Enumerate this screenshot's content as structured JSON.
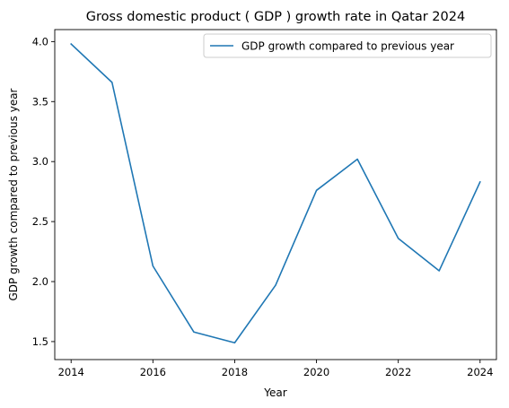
{
  "chart_data": {
    "type": "line",
    "title": "Gross domestic product ( GDP ) growth rate in Qatar 2024",
    "xlabel": "Year",
    "ylabel": "GDP growth compared to previous year",
    "xlim": [
      2013.6,
      2024.4
    ],
    "ylim": [
      1.35,
      4.1
    ],
    "xticks": [
      2014,
      2016,
      2018,
      2020,
      2022,
      2024
    ],
    "yticks": [
      1.5,
      2.0,
      2.5,
      3.0,
      3.5,
      4.0
    ],
    "ytick_labels": [
      "1.5",
      "2.0",
      "2.5",
      "3.0",
      "3.5",
      "4.0"
    ],
    "grid": false,
    "legend_position": "top-right",
    "x": [
      2014,
      2015,
      2016,
      2017,
      2018,
      2019,
      2020,
      2021,
      2022,
      2023,
      2024
    ],
    "series": [
      {
        "name": "GDP growth compared to previous year",
        "color": "#1f77b4",
        "values": [
          3.98,
          3.66,
          2.13,
          1.58,
          1.49,
          1.97,
          2.76,
          3.02,
          2.36,
          2.09,
          2.83
        ]
      }
    ]
  }
}
